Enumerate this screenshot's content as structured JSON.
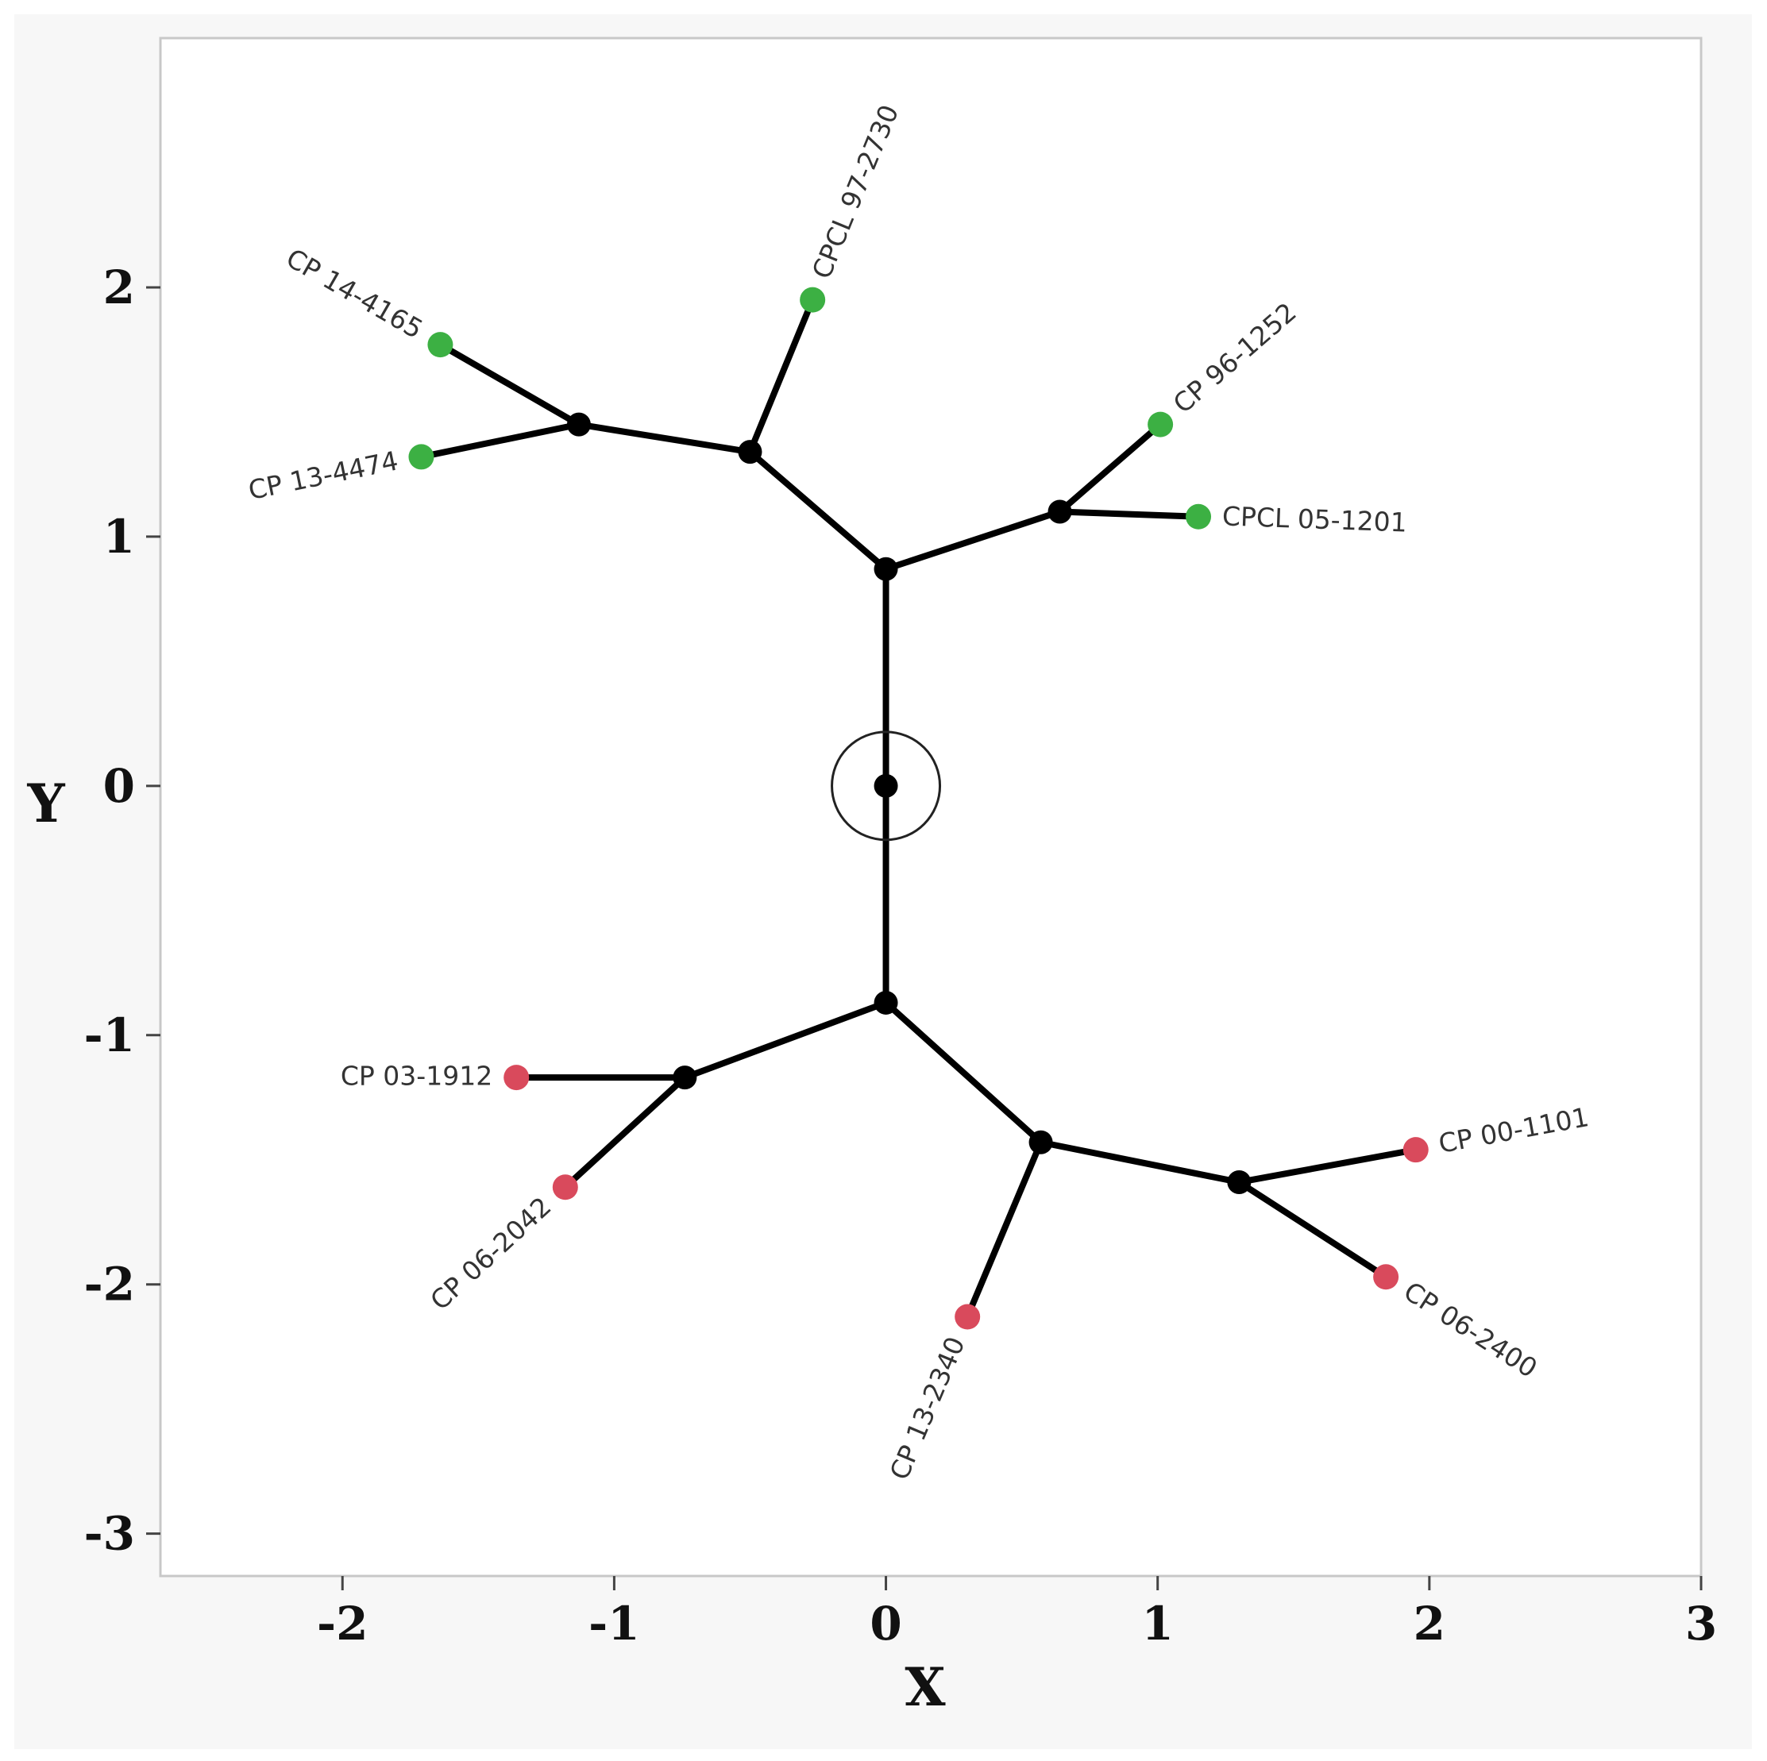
{
  "chart_data": {
    "type": "scatter",
    "subtype": "unrooted-tree",
    "title": "",
    "xlabel": "X",
    "ylabel": "Y",
    "xlim": [
      -2.67,
      3
    ],
    "ylim": [
      -3.17,
      3
    ],
    "x_ticks": [
      -2,
      -1,
      0,
      1,
      2,
      3
    ],
    "y_ticks": [
      -3,
      -2,
      -1,
      0,
      1,
      2
    ],
    "grid": false,
    "colors": {
      "group_a": "#3cb043",
      "group_b": "#d94a5c",
      "internal": "#000000"
    },
    "root": {
      "x": 0,
      "y": 0
    },
    "internal_nodes": [
      {
        "id": "n1",
        "x": 0,
        "y": 0.87
      },
      {
        "id": "n2",
        "x": -0.5,
        "y": 1.34
      },
      {
        "id": "n3",
        "x": -1.13,
        "y": 1.45
      },
      {
        "id": "n4",
        "x": 0.64,
        "y": 1.1
      },
      {
        "id": "n5",
        "x": 0,
        "y": -0.87
      },
      {
        "id": "n6",
        "x": -0.74,
        "y": -1.17
      },
      {
        "id": "n7",
        "x": 0.57,
        "y": -1.43
      },
      {
        "id": "n8",
        "x": 1.3,
        "y": -1.59
      }
    ],
    "leaves": [
      {
        "id": "l1",
        "label": "CP 14-4165",
        "x": -1.64,
        "y": 1.77,
        "group": "group_a",
        "parent": "n3"
      },
      {
        "id": "l2",
        "label": "CP 13-4474",
        "x": -1.71,
        "y": 1.32,
        "group": "group_a",
        "parent": "n3"
      },
      {
        "id": "l3",
        "label": "CPCL 97-2730",
        "x": -0.27,
        "y": 1.95,
        "group": "group_a",
        "parent": "n2"
      },
      {
        "id": "l4",
        "label": "CP 96-1252",
        "x": 1.01,
        "y": 1.45,
        "group": "group_a",
        "parent": "n4"
      },
      {
        "id": "l5",
        "label": "CPCL 05-1201",
        "x": 1.15,
        "y": 1.08,
        "group": "group_a",
        "parent": "n4"
      },
      {
        "id": "l6",
        "label": "CP 03-1912",
        "x": -1.36,
        "y": -1.17,
        "group": "group_b",
        "parent": "n6"
      },
      {
        "id": "l7",
        "label": "CP 06-2042",
        "x": -1.18,
        "y": -1.61,
        "group": "group_b",
        "parent": "n6"
      },
      {
        "id": "l8",
        "label": "CP 13-2340",
        "x": 0.3,
        "y": -2.13,
        "group": "group_b",
        "parent": "n7"
      },
      {
        "id": "l9",
        "label": "CP 00-1101",
        "x": 1.95,
        "y": -1.46,
        "group": "group_b",
        "parent": "n8"
      },
      {
        "id": "l10",
        "label": "CP 06-2400",
        "x": 1.84,
        "y": -1.97,
        "group": "group_b",
        "parent": "n8"
      }
    ],
    "edges": [
      [
        "root",
        "n1"
      ],
      [
        "n1",
        "n2"
      ],
      [
        "n2",
        "n3"
      ],
      [
        "n1",
        "n4"
      ],
      [
        "root",
        "n5"
      ],
      [
        "n5",
        "n6"
      ],
      [
        "n5",
        "n7"
      ],
      [
        "n7",
        "n8"
      ],
      [
        "n3",
        "l1"
      ],
      [
        "n3",
        "l2"
      ],
      [
        "n2",
        "l3"
      ],
      [
        "n4",
        "l4"
      ],
      [
        "n4",
        "l5"
      ],
      [
        "n6",
        "l6"
      ],
      [
        "n6",
        "l7"
      ],
      [
        "n7",
        "l8"
      ],
      [
        "n8",
        "l9"
      ],
      [
        "n8",
        "l10"
      ]
    ]
  }
}
